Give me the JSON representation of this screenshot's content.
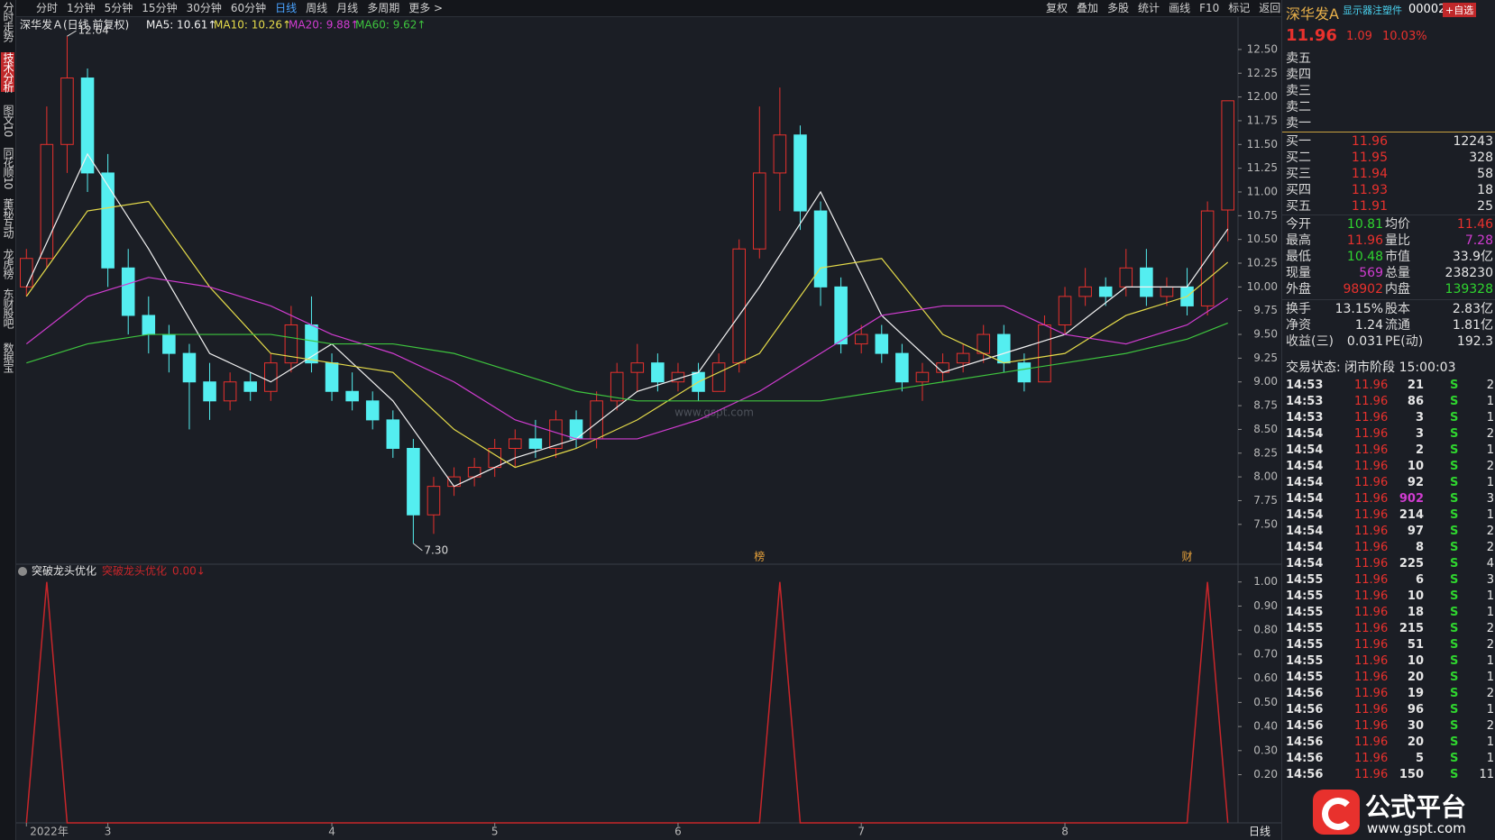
{
  "toolbar": {
    "periods": [
      "分时",
      "1分钟",
      "5分钟",
      "15分钟",
      "30分钟",
      "60分钟",
      "日线",
      "周线",
      "月线",
      "多周期",
      "更多 >"
    ],
    "active": "日线",
    "tools": [
      "复权",
      "叠加",
      "多股",
      "统计",
      "画线",
      "F10",
      "标记",
      "返回"
    ]
  },
  "side_tabs": [
    "分时走势",
    "技术分析",
    "图文10",
    "同花顺10",
    "董秘互动",
    "龙虎榜",
    "东财股吧",
    "数据宝"
  ],
  "chart_data": [
    {
      "type": "candlestick",
      "title": "深华发Ａ(日线 前复权)",
      "candles": [
        [
          10.0,
          10.4,
          9.9,
          10.3
        ],
        [
          10.3,
          11.9,
          10.2,
          11.5
        ],
        [
          11.5,
          12.64,
          11.2,
          12.2
        ],
        [
          12.2,
          12.3,
          11.0,
          11.2
        ],
        [
          11.2,
          11.4,
          10.0,
          10.2
        ],
        [
          10.2,
          10.4,
          9.5,
          9.7
        ],
        [
          9.7,
          9.9,
          9.3,
          9.5
        ],
        [
          9.5,
          9.6,
          9.1,
          9.3
        ],
        [
          9.3,
          9.4,
          8.5,
          9.0
        ],
        [
          9.0,
          9.2,
          8.6,
          8.8
        ],
        [
          8.8,
          9.1,
          8.7,
          9.0
        ],
        [
          9.0,
          9.1,
          8.8,
          8.9
        ],
        [
          8.9,
          9.3,
          8.8,
          9.2
        ],
        [
          9.2,
          9.8,
          9.1,
          9.6
        ],
        [
          9.6,
          9.9,
          9.1,
          9.2
        ],
        [
          9.2,
          9.3,
          8.8,
          8.9
        ],
        [
          8.9,
          9.1,
          8.7,
          8.8
        ],
        [
          8.8,
          8.9,
          8.5,
          8.6
        ],
        [
          8.6,
          8.7,
          8.2,
          8.3
        ],
        [
          8.3,
          8.4,
          7.3,
          7.6
        ],
        [
          7.6,
          8.0,
          7.4,
          7.9
        ],
        [
          7.9,
          8.1,
          7.8,
          8.0
        ],
        [
          8.0,
          8.2,
          7.9,
          8.1
        ],
        [
          8.1,
          8.4,
          8.0,
          8.3
        ],
        [
          8.3,
          8.5,
          8.1,
          8.4
        ],
        [
          8.4,
          8.6,
          8.2,
          8.3
        ],
        [
          8.3,
          8.7,
          8.2,
          8.6
        ],
        [
          8.6,
          8.7,
          8.3,
          8.4
        ],
        [
          8.4,
          8.9,
          8.3,
          8.8
        ],
        [
          8.8,
          9.2,
          8.7,
          9.1
        ],
        [
          9.1,
          9.4,
          8.9,
          9.2
        ],
        [
          9.2,
          9.3,
          8.9,
          9.0
        ],
        [
          9.0,
          9.2,
          8.9,
          9.1
        ],
        [
          9.1,
          9.2,
          8.8,
          8.9
        ],
        [
          8.9,
          9.3,
          8.9,
          9.2
        ],
        [
          9.2,
          10.5,
          9.1,
          10.4
        ],
        [
          10.4,
          11.9,
          10.3,
          11.2
        ],
        [
          11.2,
          12.1,
          10.8,
          11.6
        ],
        [
          11.6,
          11.7,
          10.6,
          10.8
        ],
        [
          10.8,
          10.9,
          9.8,
          10.0
        ],
        [
          10.0,
          10.1,
          9.3,
          9.4
        ],
        [
          9.4,
          9.6,
          9.3,
          9.5
        ],
        [
          9.5,
          9.6,
          9.2,
          9.3
        ],
        [
          9.3,
          9.4,
          8.9,
          9.0
        ],
        [
          9.0,
          9.2,
          8.8,
          9.1
        ],
        [
          9.1,
          9.3,
          9.0,
          9.2
        ],
        [
          9.2,
          9.4,
          9.1,
          9.3
        ],
        [
          9.3,
          9.6,
          9.2,
          9.5
        ],
        [
          9.5,
          9.6,
          9.1,
          9.2
        ],
        [
          9.2,
          9.3,
          8.9,
          9.0
        ],
        [
          9.0,
          9.7,
          9.0,
          9.6
        ],
        [
          9.6,
          10.0,
          9.5,
          9.9
        ],
        [
          9.9,
          10.2,
          9.8,
          10.0
        ],
        [
          10.0,
          10.1,
          9.8,
          9.9
        ],
        [
          10.0,
          10.4,
          9.9,
          10.2
        ],
        [
          10.2,
          10.4,
          9.8,
          9.9
        ],
        [
          9.9,
          10.1,
          9.8,
          10.0
        ],
        [
          10.0,
          10.2,
          9.7,
          9.8
        ],
        [
          9.8,
          10.9,
          9.7,
          10.8
        ],
        [
          10.81,
          11.96,
          10.48,
          11.96
        ]
      ],
      "up_color": "#e8312d",
      "down_color": "#54eef0",
      "series": [
        {
          "name": "MA5: 10.61↑",
          "color": "#f2f2f2",
          "x": [
            0,
            3,
            6,
            9,
            12,
            15,
            18,
            21,
            24,
            27,
            30,
            33,
            36,
            39,
            42,
            45,
            48,
            51,
            54,
            57,
            59
          ],
          "values": [
            10.0,
            11.4,
            10.4,
            9.3,
            9.0,
            9.4,
            8.8,
            7.9,
            8.2,
            8.4,
            8.9,
            9.1,
            10.0,
            11.0,
            9.7,
            9.1,
            9.3,
            9.5,
            10.0,
            10.0,
            10.61
          ]
        },
        {
          "name": "MA10: 10.26↑",
          "color": "#e6dc4a",
          "x": [
            0,
            3,
            6,
            9,
            12,
            15,
            18,
            21,
            24,
            27,
            30,
            33,
            36,
            39,
            42,
            45,
            48,
            51,
            54,
            57,
            59
          ],
          "values": [
            9.9,
            10.8,
            10.9,
            10.0,
            9.3,
            9.2,
            9.1,
            8.5,
            8.1,
            8.3,
            8.6,
            9.0,
            9.3,
            10.2,
            10.3,
            9.5,
            9.2,
            9.3,
            9.7,
            9.9,
            10.26
          ]
        },
        {
          "name": "MA20: 9.88↑",
          "color": "#d03cd0",
          "x": [
            0,
            3,
            6,
            9,
            12,
            15,
            18,
            21,
            24,
            27,
            30,
            33,
            36,
            39,
            42,
            45,
            48,
            51,
            54,
            57,
            59
          ],
          "values": [
            9.4,
            9.9,
            10.1,
            10.0,
            9.8,
            9.5,
            9.3,
            9.0,
            8.6,
            8.4,
            8.4,
            8.6,
            8.9,
            9.3,
            9.7,
            9.8,
            9.8,
            9.5,
            9.4,
            9.6,
            9.88
          ]
        },
        {
          "name": "MA60: 9.62↑",
          "color": "#3ec43e",
          "x": [
            0,
            3,
            6,
            9,
            12,
            15,
            18,
            21,
            24,
            27,
            30,
            33,
            36,
            39,
            42,
            45,
            48,
            51,
            54,
            57,
            59
          ],
          "values": [
            9.2,
            9.4,
            9.5,
            9.5,
            9.5,
            9.4,
            9.4,
            9.3,
            9.1,
            8.9,
            8.8,
            8.8,
            8.8,
            8.8,
            8.9,
            9.0,
            9.1,
            9.2,
            9.3,
            9.45,
            9.62
          ]
        }
      ],
      "ylim": [
        7.09,
        12.67
      ],
      "yticks": [
        {
          "value": 7.5,
          "label": "7.50"
        },
        {
          "value": 7.75,
          "label": "7.75"
        },
        {
          "value": 8,
          "label": "8.00"
        },
        {
          "value": 8.25,
          "label": "8.25"
        },
        {
          "value": 8.5,
          "label": "8.50"
        },
        {
          "value": 8.75,
          "label": "8.75"
        },
        {
          "value": 9,
          "label": "9.00"
        },
        {
          "value": 9.25,
          "label": "9.25"
        },
        {
          "value": 9.5,
          "label": "9.50"
        },
        {
          "value": 9.75,
          "label": "9.75"
        },
        {
          "value": 10,
          "label": "10.00"
        },
        {
          "value": 10.25,
          "label": "10.25"
        },
        {
          "value": 10.5,
          "label": "10.50"
        },
        {
          "value": 10.75,
          "label": "10.75"
        },
        {
          "value": 11,
          "label": "11.00"
        },
        {
          "value": 11.25,
          "label": "11.25"
        },
        {
          "value": 11.5,
          "label": "11.50"
        },
        {
          "value": 11.75,
          "label": "11.75"
        },
        {
          "value": 12,
          "label": "12.00"
        },
        {
          "value": 12.25,
          "label": "12.25"
        },
        {
          "value": 12.5,
          "label": "12.50"
        }
      ],
      "annotations": [
        {
          "x": 2,
          "value": 12.64,
          "label": "12.64"
        },
        {
          "x": 19,
          "value": 7.3,
          "label": "7.30"
        }
      ],
      "markers": [
        {
          "x": 36,
          "label": "榜"
        },
        {
          "x": 57,
          "label": "财"
        }
      ],
      "watermark": "www.gspt.com"
    },
    {
      "type": "line",
      "name": "突破龙头优化",
      "current_label": "0.00↓",
      "color": "#c8262a",
      "values": [
        0,
        1,
        0,
        0,
        0,
        0,
        0,
        0,
        0,
        0,
        0,
        0,
        0,
        0,
        0,
        0,
        0,
        0,
        0,
        0,
        0,
        0,
        0,
        0,
        0,
        0,
        0,
        0,
        0,
        0,
        0,
        0,
        0,
        0,
        0,
        0,
        0,
        1,
        0,
        0,
        0,
        0,
        0,
        0,
        0,
        0,
        0,
        0,
        0,
        0,
        0,
        0,
        0,
        0,
        0,
        0,
        0,
        0,
        1,
        0
      ],
      "ylim": [
        0,
        1.07
      ],
      "yticks": [
        {
          "value": 0.2,
          "label": "0.20"
        },
        {
          "value": 0.3,
          "label": "0.30"
        },
        {
          "value": 0.4,
          "label": "0.40"
        },
        {
          "value": 0.5,
          "label": "0.50"
        },
        {
          "value": 0.6,
          "label": "0.60"
        },
        {
          "value": 0.7,
          "label": "0.70"
        },
        {
          "value": 0.8,
          "label": "0.80"
        },
        {
          "value": 0.9,
          "label": "0.90"
        },
        {
          "value": 1,
          "label": "1.00"
        }
      ],
      "xlabels": [
        {
          "value": 0,
          "label": "2022年"
        },
        {
          "value": 4,
          "label": "3"
        },
        {
          "value": 15,
          "label": "4"
        },
        {
          "value": 23,
          "label": "5"
        },
        {
          "value": 32,
          "label": "6"
        },
        {
          "value": 41,
          "label": "7"
        },
        {
          "value": 51,
          "label": "8"
        }
      ],
      "period_label": "日线"
    }
  ],
  "quote": {
    "name": "深华发A",
    "sector": "显示器注塑件",
    "code": "00002",
    "watch": "+自选",
    "price": 11.96,
    "change": 1.09,
    "change_pct": "10.03%",
    "asks": [
      "卖五",
      "卖四",
      "卖三",
      "卖二",
      "卖一"
    ],
    "bids": [
      [
        "买一",
        11.96,
        12243
      ],
      [
        "买二",
        11.95,
        328
      ],
      [
        "买三",
        11.94,
        58
      ],
      [
        "买四",
        11.93,
        18
      ],
      [
        "买五",
        11.91,
        25
      ]
    ],
    "stats": [
      [
        {
          "label": "今开",
          "value": 10.81,
          "color": "#2fd42f"
        },
        {
          "label": "均价",
          "value": 11.46,
          "color": "#e8312d"
        }
      ],
      [
        {
          "label": "最高",
          "value": 11.96,
          "color": "#e8312d"
        },
        {
          "label": "量比",
          "value": 7.28,
          "color": "#d03cd0"
        }
      ],
      [
        {
          "label": "最低",
          "value": 10.48,
          "color": "#2fd42f"
        },
        {
          "label": "市值",
          "value": "33.9亿",
          "color": "#e6e6e6"
        }
      ],
      [
        {
          "label": "现量",
          "value": 569,
          "color": "#d03cd0"
        },
        {
          "label": "总量",
          "value": 238230,
          "color": "#e6e6e6"
        }
      ],
      [
        {
          "label": "外盘",
          "value": 98902,
          "color": "#e8312d"
        },
        {
          "label": "内盘",
          "value": 139328,
          "color": "#2fd42f"
        }
      ],
      [
        {
          "label": "换手",
          "value": "13.15%",
          "color": "#e6e6e6"
        },
        {
          "label": "股本",
          "value": "2.83亿",
          "color": "#e6e6e6"
        }
      ],
      [
        {
          "label": "净资",
          "value": 1.24,
          "color": "#e6e6e6"
        },
        {
          "label": "流通",
          "value": "1.81亿",
          "color": "#e6e6e6"
        }
      ],
      [
        {
          "label": "收益(三)",
          "value": 0.031,
          "color": "#e6e6e6"
        },
        {
          "label": "PE(动)",
          "value": 192.3,
          "color": "#e6e6e6"
        }
      ]
    ],
    "status": "交易状态: 闭市阶段 15:00:03",
    "ticks": [
      [
        "14:53",
        11.96,
        21,
        "S",
        2
      ],
      [
        "14:53",
        11.96,
        86,
        "S",
        1
      ],
      [
        "14:53",
        11.96,
        3,
        "S",
        1
      ],
      [
        "14:54",
        11.96,
        3,
        "S",
        2
      ],
      [
        "14:54",
        11.96,
        2,
        "S",
        1
      ],
      [
        "14:54",
        11.96,
        10,
        "S",
        2
      ],
      [
        "14:54",
        11.96,
        92,
        "S",
        1
      ],
      [
        "14:54",
        11.96,
        902,
        "S",
        3
      ],
      [
        "14:54",
        11.96,
        214,
        "S",
        1
      ],
      [
        "14:54",
        11.96,
        97,
        "S",
        2
      ],
      [
        "14:54",
        11.96,
        8,
        "S",
        2
      ],
      [
        "14:54",
        11.96,
        225,
        "S",
        4
      ],
      [
        "14:55",
        11.96,
        6,
        "S",
        3
      ],
      [
        "14:55",
        11.96,
        10,
        "S",
        1
      ],
      [
        "14:55",
        11.96,
        18,
        "S",
        1
      ],
      [
        "14:55",
        11.96,
        215,
        "S",
        2
      ],
      [
        "14:55",
        11.96,
        51,
        "S",
        2
      ],
      [
        "14:55",
        11.96,
        10,
        "S",
        1
      ],
      [
        "14:55",
        11.96,
        20,
        "S",
        1
      ],
      [
        "14:56",
        11.96,
        19,
        "S",
        2
      ],
      [
        "14:56",
        11.96,
        96,
        "S",
        1
      ],
      [
        "14:56",
        11.96,
        30,
        "S",
        2
      ],
      [
        "14:56",
        11.96,
        20,
        "S",
        1
      ],
      [
        "14:56",
        11.96,
        5,
        "S",
        1
      ],
      [
        "14:56",
        11.96,
        150,
        "S",
        11
      ]
    ]
  },
  "logo": {
    "text": "公式平台",
    "url": "www.gspt.com"
  }
}
